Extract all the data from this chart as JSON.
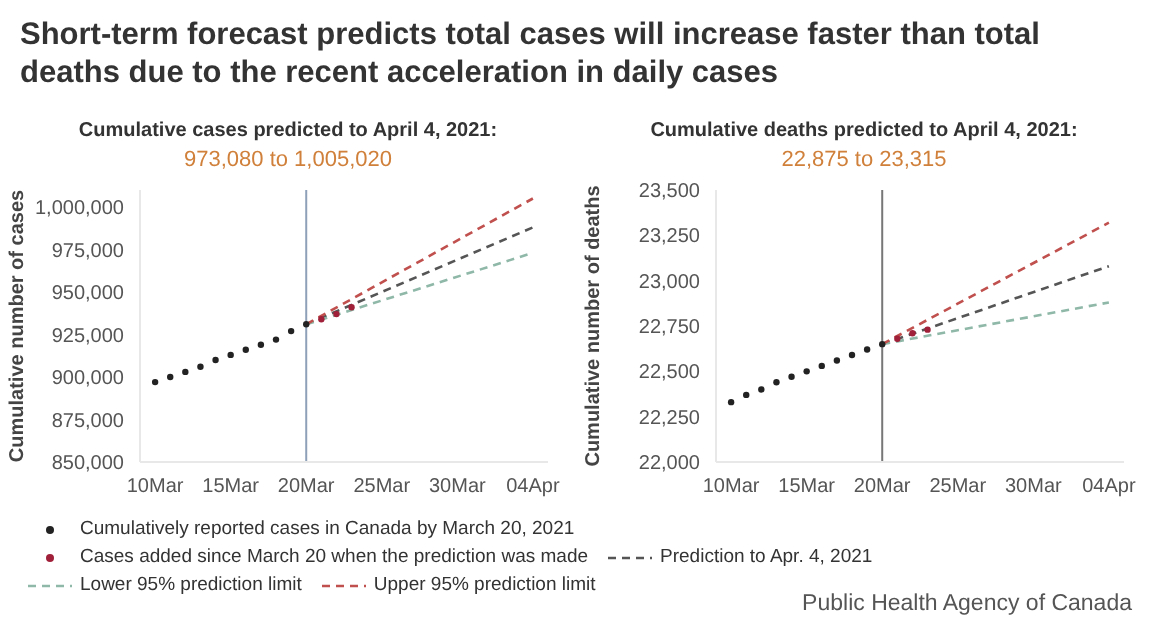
{
  "chart_data": [
    {
      "type": "scatter",
      "title": "Cumulative cases predicted to April 4, 2021:",
      "subtitle": "973,080 to 1,005,020",
      "ylabel": "Cumulative number of cases",
      "annotations": [
        "Short-term forecast predicts total cases will increase faster than total deaths due to the recent acceleration in daily cases"
      ],
      "xlim": [
        "2021-03-09",
        "2021-04-05"
      ],
      "xticks": [
        {
          "value": "2021-03-10",
          "label": "10Mar"
        },
        {
          "value": "2021-03-15",
          "label": "15Mar"
        },
        {
          "value": "2021-03-20",
          "label": "20Mar"
        },
        {
          "value": "2021-03-25",
          "label": "25Mar"
        },
        {
          "value": "2021-03-30",
          "label": "30Mar"
        },
        {
          "value": "2021-04-04",
          "label": "04Apr"
        }
      ],
      "ylim": [
        850000,
        1010000
      ],
      "yticks": [
        {
          "value": 850000,
          "label": "850,000"
        },
        {
          "value": 875000,
          "label": "875,000"
        },
        {
          "value": 900000,
          "label": "900,000"
        },
        {
          "value": 925000,
          "label": "925,000"
        },
        {
          "value": 950000,
          "label": "950,000"
        },
        {
          "value": 975000,
          "label": "975,000"
        },
        {
          "value": 1000000,
          "label": "1,000,000"
        }
      ],
      "grid": false,
      "legend": "bottom",
      "ref_lines": [
        {
          "axis": "x",
          "value": "2021-03-20",
          "color": "#8da0b8"
        }
      ],
      "series": [
        {
          "name": "Cumulatively reported cases in Canada by March 20, 2021",
          "type": "scatter",
          "marker": "circle",
          "color": "#222222",
          "x": [
            "2021-03-10",
            "2021-03-11",
            "2021-03-12",
            "2021-03-13",
            "2021-03-14",
            "2021-03-15",
            "2021-03-16",
            "2021-03-17",
            "2021-03-18",
            "2021-03-19",
            "2021-03-20"
          ],
          "values": [
            897000,
            900000,
            903000,
            906000,
            910000,
            913000,
            916000,
            919000,
            922000,
            927000,
            931000
          ]
        },
        {
          "name": "Cases added since March 20 when the prediction was made",
          "type": "scatter",
          "marker": "circle",
          "color": "#a0203a",
          "x": [
            "2021-03-21",
            "2021-03-22",
            "2021-03-23"
          ],
          "values": [
            934000,
            937000,
            941000
          ]
        },
        {
          "name": "Prediction to Apr. 4, 2021",
          "type": "line",
          "marker": "none",
          "line_style": "dashed",
          "color": "#555555",
          "x": [
            "2021-03-20",
            "2021-04-04"
          ],
          "values": [
            931000,
            988000
          ]
        },
        {
          "name": "Lower 95% prediction limit",
          "type": "line",
          "marker": "none",
          "line_style": "dashed",
          "color": "#8fb8a8",
          "x": [
            "2021-03-20",
            "2021-04-04"
          ],
          "values": [
            931000,
            973000
          ]
        },
        {
          "name": "Upper 95% prediction limit",
          "type": "line",
          "marker": "none",
          "line_style": "dashed",
          "color": "#c0504d",
          "x": [
            "2021-03-20",
            "2021-04-04"
          ],
          "values": [
            931000,
            1005000
          ]
        }
      ]
    },
    {
      "type": "scatter",
      "title": "Cumulative deaths predicted to April 4, 2021:",
      "subtitle": "22,875 to 23,315",
      "ylabel": "Cumulative number of deaths",
      "annotations": [
        "Public Health Agency of Canada"
      ],
      "xlim": [
        "2021-03-09",
        "2021-04-05"
      ],
      "xticks": [
        {
          "value": "2021-03-10",
          "label": "10Mar"
        },
        {
          "value": "2021-03-15",
          "label": "15Mar"
        },
        {
          "value": "2021-03-20",
          "label": "20Mar"
        },
        {
          "value": "2021-03-25",
          "label": "25Mar"
        },
        {
          "value": "2021-03-30",
          "label": "30Mar"
        },
        {
          "value": "2021-04-04",
          "label": "04Apr"
        }
      ],
      "ylim": [
        22000,
        23500
      ],
      "yticks": [
        {
          "value": 22000,
          "label": "22,000"
        },
        {
          "value": 22250,
          "label": "22,250"
        },
        {
          "value": 22500,
          "label": "22,500"
        },
        {
          "value": 22750,
          "label": "22,750"
        },
        {
          "value": 23000,
          "label": "23,000"
        },
        {
          "value": 23250,
          "label": "23,250"
        },
        {
          "value": 23500,
          "label": "23,500"
        }
      ],
      "grid": false,
      "ref_lines": [
        {
          "axis": "x",
          "value": "2021-03-20",
          "color": "#777777"
        }
      ],
      "series": [
        {
          "type": "scatter",
          "marker": "circle",
          "color": "#222222",
          "x": [
            "2021-03-10",
            "2021-03-11",
            "2021-03-12",
            "2021-03-13",
            "2021-03-14",
            "2021-03-15",
            "2021-03-16",
            "2021-03-17",
            "2021-03-18",
            "2021-03-19",
            "2021-03-20"
          ],
          "values": [
            22330,
            22370,
            22400,
            22440,
            22470,
            22500,
            22530,
            22560,
            22590,
            22620,
            22650
          ]
        },
        {
          "type": "scatter",
          "marker": "circle",
          "color": "#a0203a",
          "x": [
            "2021-03-21",
            "2021-03-22",
            "2021-03-23"
          ],
          "values": [
            22680,
            22710,
            22730
          ]
        },
        {
          "type": "line",
          "marker": "none",
          "line_style": "dashed",
          "color": "#555555",
          "x": [
            "2021-03-20",
            "2021-04-04"
          ],
          "values": [
            22650,
            23080
          ]
        },
        {
          "type": "line",
          "marker": "none",
          "line_style": "dashed",
          "color": "#8fb8a8",
          "x": [
            "2021-03-20",
            "2021-04-04"
          ],
          "values": [
            22650,
            22880
          ]
        },
        {
          "type": "line",
          "marker": "none",
          "line_style": "dashed",
          "color": "#c0504d",
          "x": [
            "2021-03-20",
            "2021-04-04"
          ],
          "values": [
            22650,
            23320
          ]
        }
      ]
    }
  ]
}
